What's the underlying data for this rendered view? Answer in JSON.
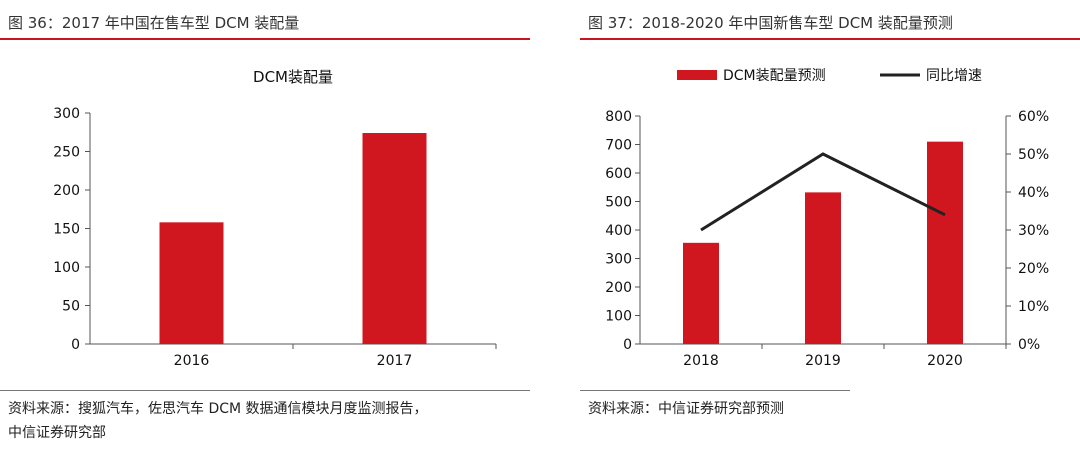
{
  "left": {
    "figure_title": "图 36：2017 年中国在售车型 DCM 装配量",
    "source_line1": "资料来源：搜狐汽车，佐思汽车 DCM 数据通信模块月度监测报告，",
    "source_line2": "中信证券研究部"
  },
  "right": {
    "figure_title": "图 37：2018-2020 年中国新售车型 DCM 装配量预测",
    "source": "资料来源：中信证券研究部预测"
  },
  "colors": {
    "bar": "#d0161e",
    "line": "#222222",
    "accent": "#c8161d"
  },
  "chart_data": [
    {
      "type": "bar",
      "title": "DCM装配量",
      "categories": [
        "2016",
        "2017"
      ],
      "values": [
        158,
        274
      ],
      "ylim": [
        0,
        300
      ],
      "yticks": [
        0,
        50,
        100,
        150,
        200,
        250,
        300
      ],
      "xlabel": "",
      "ylabel": "",
      "grid": false
    },
    {
      "type": "bar",
      "title": "",
      "categories": [
        "2018",
        "2019",
        "2020"
      ],
      "series": [
        {
          "name": "DCM装配量预测",
          "type": "bar",
          "axis": "left",
          "values": [
            355,
            532,
            710
          ]
        },
        {
          "name": "同比增速",
          "type": "line",
          "axis": "right",
          "values": [
            0.3,
            0.5,
            0.34
          ]
        }
      ],
      "ylim": [
        0,
        800
      ],
      "yticks": [
        0,
        100,
        200,
        300,
        400,
        500,
        600,
        700,
        800
      ],
      "y2lim": [
        0,
        0.6
      ],
      "y2ticks": [
        "0%",
        "10%",
        "20%",
        "30%",
        "40%",
        "50%",
        "60%"
      ],
      "legend": "top",
      "grid": false
    }
  ]
}
